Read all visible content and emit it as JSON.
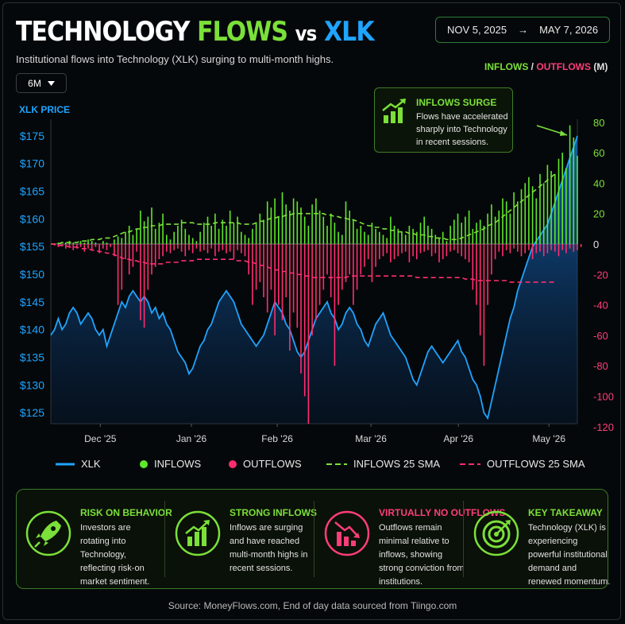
{
  "header": {
    "title_part1": "TECHNOLOGY",
    "title_part2": "FLOWS",
    "title_part3": "vs",
    "title_part4": "XLK",
    "subtitle": "Institutional flows into Technology (XLK) surging to multi-month highs.",
    "date_start": "NOV 5, 2025",
    "date_arrow": "→",
    "date_end": "MAY 7, 2026",
    "timeframe": "6M"
  },
  "axis_titles": {
    "left": "XLK PRICE",
    "right_inflows": "INFLOWS",
    "right_sep": "/",
    "right_outflows": "OUTFLOWS",
    "right_unit": "(M)"
  },
  "callout": {
    "title": "INFLOWS SURGE",
    "text": "Flows have accelerated sharply into Technology in recent sessions."
  },
  "legend": {
    "xlk": "XLK",
    "inflows": "INFLOWS",
    "outflows": "OUTFLOWS",
    "inflows_sma": "INFLOWS 25 SMA",
    "outflows_sma": "OUTFLOWS 25 SMA"
  },
  "takeaways": [
    {
      "title": "RISK ON BEHAVIOR",
      "text": "Investors are rotating into Technology, reflecting risk-on market sentiment.",
      "icon": "rocket-icon",
      "color": "#7be03a"
    },
    {
      "title": "STRONG INFLOWS",
      "text": "Inflows are surging and have reached multi-month highs in recent sessions.",
      "icon": "bar-chart-up-icon",
      "color": "#7be03a"
    },
    {
      "title": "VIRTUALLY NO OUTFLOWS",
      "text": "Outflows remain minimal relative to inflows, showing strong conviction from institutions.",
      "icon": "bar-chart-down-icon",
      "color": "#ff3d7a"
    },
    {
      "title": "KEY TAKEAWAY",
      "text": "Technology (XLK) is experiencing powerful institutional demand and renewed momentum.",
      "icon": "target-icon",
      "color": "#7be03a"
    }
  ],
  "source": "Source: MoneyFlows.com, End of day data sourced from Tiingo.com",
  "colors": {
    "xlk": "#1fa4ff",
    "inflows": "#5ee82a",
    "outflows": "#ff2d6f",
    "panel_border": "#3a7a2a"
  },
  "chart_data": {
    "type": "bar+area",
    "x_tick_labels": [
      "Dec '25",
      "Jan '26",
      "Feb '26",
      "Mar '26",
      "Apr '26",
      "May '26"
    ],
    "left_axis": {
      "title": "XLK PRICE",
      "ticks": [
        "$175",
        "$170",
        "$165",
        "$160",
        "$155",
        "$150",
        "$145",
        "$140",
        "$135",
        "$130",
        "$125"
      ],
      "range": [
        123,
        178
      ]
    },
    "right_axis": {
      "title": "INFLOWS / OUTFLOWS (M)",
      "ticks": [
        "80",
        "60",
        "40",
        "20",
        "0",
        "-20",
        "-40",
        "-60",
        "-80",
        "-100",
        "-120"
      ],
      "range": [
        -118,
        82
      ]
    },
    "xlk_price": [
      139,
      140,
      142,
      140,
      141,
      143,
      144,
      143,
      141,
      142,
      143,
      142,
      140,
      139,
      140,
      137,
      139,
      141,
      143,
      145,
      144,
      146,
      147,
      146,
      145,
      146,
      145,
      143,
      144,
      142,
      143,
      141,
      140,
      138,
      136,
      135,
      134,
      132,
      133,
      135,
      137,
      138,
      140,
      141,
      143,
      145,
      146,
      147,
      146,
      145,
      143,
      141,
      140,
      139,
      138,
      137,
      138,
      139,
      141,
      143,
      145,
      144,
      143,
      141,
      140,
      138,
      136,
      135,
      136,
      138,
      140,
      142,
      143,
      144,
      145,
      143,
      142,
      140,
      141,
      143,
      144,
      143,
      141,
      140,
      138,
      137,
      139,
      141,
      142,
      143,
      141,
      139,
      138,
      137,
      136,
      135,
      133,
      131,
      130,
      132,
      134,
      136,
      137,
      136,
      135,
      134,
      135,
      136,
      137,
      138,
      136,
      135,
      133,
      131,
      130,
      128,
      125,
      124,
      127,
      130,
      133,
      136,
      139,
      142,
      144,
      147,
      149,
      151,
      153,
      155,
      156,
      157,
      158,
      159,
      161,
      163,
      165,
      167,
      169,
      171,
      173,
      175
    ],
    "inflows": [
      0,
      0,
      1,
      0,
      1,
      2,
      1,
      0,
      2,
      1,
      3,
      2,
      1,
      0,
      2,
      1,
      0,
      3,
      5,
      4,
      8,
      12,
      6,
      10,
      22,
      15,
      18,
      24,
      10,
      14,
      20,
      6,
      3,
      8,
      12,
      16,
      10,
      6,
      4,
      2,
      8,
      14,
      18,
      12,
      20,
      10,
      16,
      12,
      22,
      14,
      18,
      8,
      6,
      4,
      10,
      14,
      20,
      16,
      28,
      24,
      30,
      18,
      34,
      26,
      22,
      30,
      28,
      24,
      18,
      12,
      26,
      30,
      22,
      18,
      12,
      20,
      14,
      8,
      6,
      28,
      22,
      16,
      10,
      12,
      8,
      6,
      14,
      10,
      8,
      6,
      4,
      18,
      12,
      10,
      8,
      6,
      12,
      10,
      8,
      14,
      18,
      12,
      10,
      6,
      4,
      8,
      2,
      12,
      16,
      20,
      14,
      18,
      22,
      10,
      14,
      16,
      12,
      20,
      26,
      18,
      22,
      30,
      28,
      20,
      34,
      28,
      36,
      40,
      44,
      38,
      30,
      46,
      40,
      52,
      48,
      46,
      56,
      60,
      50,
      78,
      70,
      58
    ],
    "outflows": [
      0,
      -1,
      -2,
      -1,
      -3,
      -2,
      -4,
      -3,
      -2,
      -5,
      -3,
      -4,
      -2,
      -6,
      -3,
      -4,
      -2,
      -8,
      -40,
      -30,
      -10,
      -20,
      -15,
      -5,
      -50,
      -55,
      -30,
      -20,
      -15,
      -10,
      -8,
      -5,
      -6,
      -4,
      -3,
      -5,
      -8,
      -4,
      -6,
      -3,
      -5,
      -4,
      -6,
      -3,
      -8,
      -5,
      -4,
      -6,
      -5,
      -10,
      -4,
      -6,
      -8,
      -20,
      -40,
      -30,
      -25,
      -35,
      -45,
      -30,
      -60,
      -40,
      -50,
      -35,
      -70,
      -45,
      -55,
      -85,
      -100,
      -118,
      -60,
      -50,
      -40,
      -30,
      -20,
      -35,
      -80,
      -40,
      -30,
      -25,
      -20,
      -40,
      -30,
      -20,
      -15,
      -10,
      -25,
      -15,
      -10,
      -8,
      -6,
      -12,
      -10,
      -8,
      -6,
      -5,
      -12,
      -8,
      -10,
      -6,
      -5,
      -4,
      -8,
      -6,
      -12,
      -10,
      -8,
      -5,
      -4,
      -6,
      -8,
      -10,
      -12,
      -30,
      -40,
      -60,
      -80,
      -40,
      -20,
      -10,
      -5,
      -8,
      -4,
      -6,
      -3,
      -5,
      -8,
      -6,
      -4,
      -10,
      -6,
      -5,
      -8,
      -6,
      -4,
      -5,
      -8,
      -4,
      -6,
      -3,
      -5,
      -4,
      -2
    ],
    "inflows_sma": [
      0,
      0,
      0,
      1,
      1,
      1,
      1,
      1,
      2,
      2,
      2,
      3,
      3,
      3,
      4,
      4,
      4,
      5,
      6,
      7,
      8,
      8,
      9,
      10,
      10,
      11,
      11,
      12,
      12,
      12,
      13,
      13,
      13,
      13,
      13,
      14,
      14,
      14,
      14,
      13,
      13,
      13,
      13,
      13,
      14,
      14,
      14,
      14,
      14,
      14,
      14,
      13,
      13,
      13,
      13,
      14,
      15,
      15,
      16,
      17,
      17,
      18,
      18,
      19,
      19,
      20,
      20,
      20,
      20,
      20,
      20,
      20,
      20,
      20,
      19,
      19,
      18,
      18,
      17,
      17,
      16,
      16,
      15,
      14,
      13,
      12,
      12,
      11,
      11,
      10,
      10,
      9,
      9,
      8,
      8,
      8,
      7,
      7,
      6,
      6,
      6,
      5,
      5,
      4,
      4,
      4,
      3,
      3,
      3,
      3,
      4,
      5,
      6,
      7,
      8,
      9,
      10,
      12,
      13,
      14,
      16,
      18,
      20,
      22,
      24,
      26,
      28,
      30,
      32,
      34,
      36,
      38,
      40,
      42,
      44,
      46,
      48,
      50,
      52,
      54,
      56
    ],
    "outflows_sma": [
      0,
      0,
      -1,
      -1,
      -1,
      -2,
      -2,
      -2,
      -3,
      -3,
      -3,
      -4,
      -4,
      -5,
      -5,
      -6,
      -6,
      -7,
      -8,
      -9,
      -10,
      -10,
      -11,
      -11,
      -12,
      -12,
      -13,
      -13,
      -13,
      -13,
      -13,
      -12,
      -12,
      -12,
      -12,
      -11,
      -11,
      -11,
      -11,
      -10,
      -10,
      -10,
      -10,
      -10,
      -10,
      -10,
      -10,
      -10,
      -10,
      -10,
      -11,
      -11,
      -11,
      -12,
      -12,
      -13,
      -14,
      -14,
      -15,
      -16,
      -17,
      -17,
      -18,
      -18,
      -19,
      -19,
      -20,
      -20,
      -21,
      -21,
      -22,
      -22,
      -22,
      -22,
      -22,
      -22,
      -22,
      -22,
      -22,
      -22,
      -21,
      -21,
      -21,
      -21,
      -21,
      -21,
      -21,
      -21,
      -21,
      -21,
      -21,
      -21,
      -21,
      -21,
      -21,
      -21,
      -21,
      -21,
      -22,
      -22,
      -22,
      -22,
      -22,
      -22,
      -22,
      -22,
      -22,
      -22,
      -22,
      -22,
      -22,
      -23,
      -23,
      -23,
      -24,
      -24,
      -24,
      -24,
      -24,
      -24,
      -24,
      -24,
      -24,
      -25,
      -25,
      -25,
      -25,
      -25,
      -25,
      -25,
      -25,
      -25,
      -25,
      -25,
      -25,
      -25,
      -25,
      -25,
      -25,
      -25,
      -25,
      -25
    ]
  }
}
